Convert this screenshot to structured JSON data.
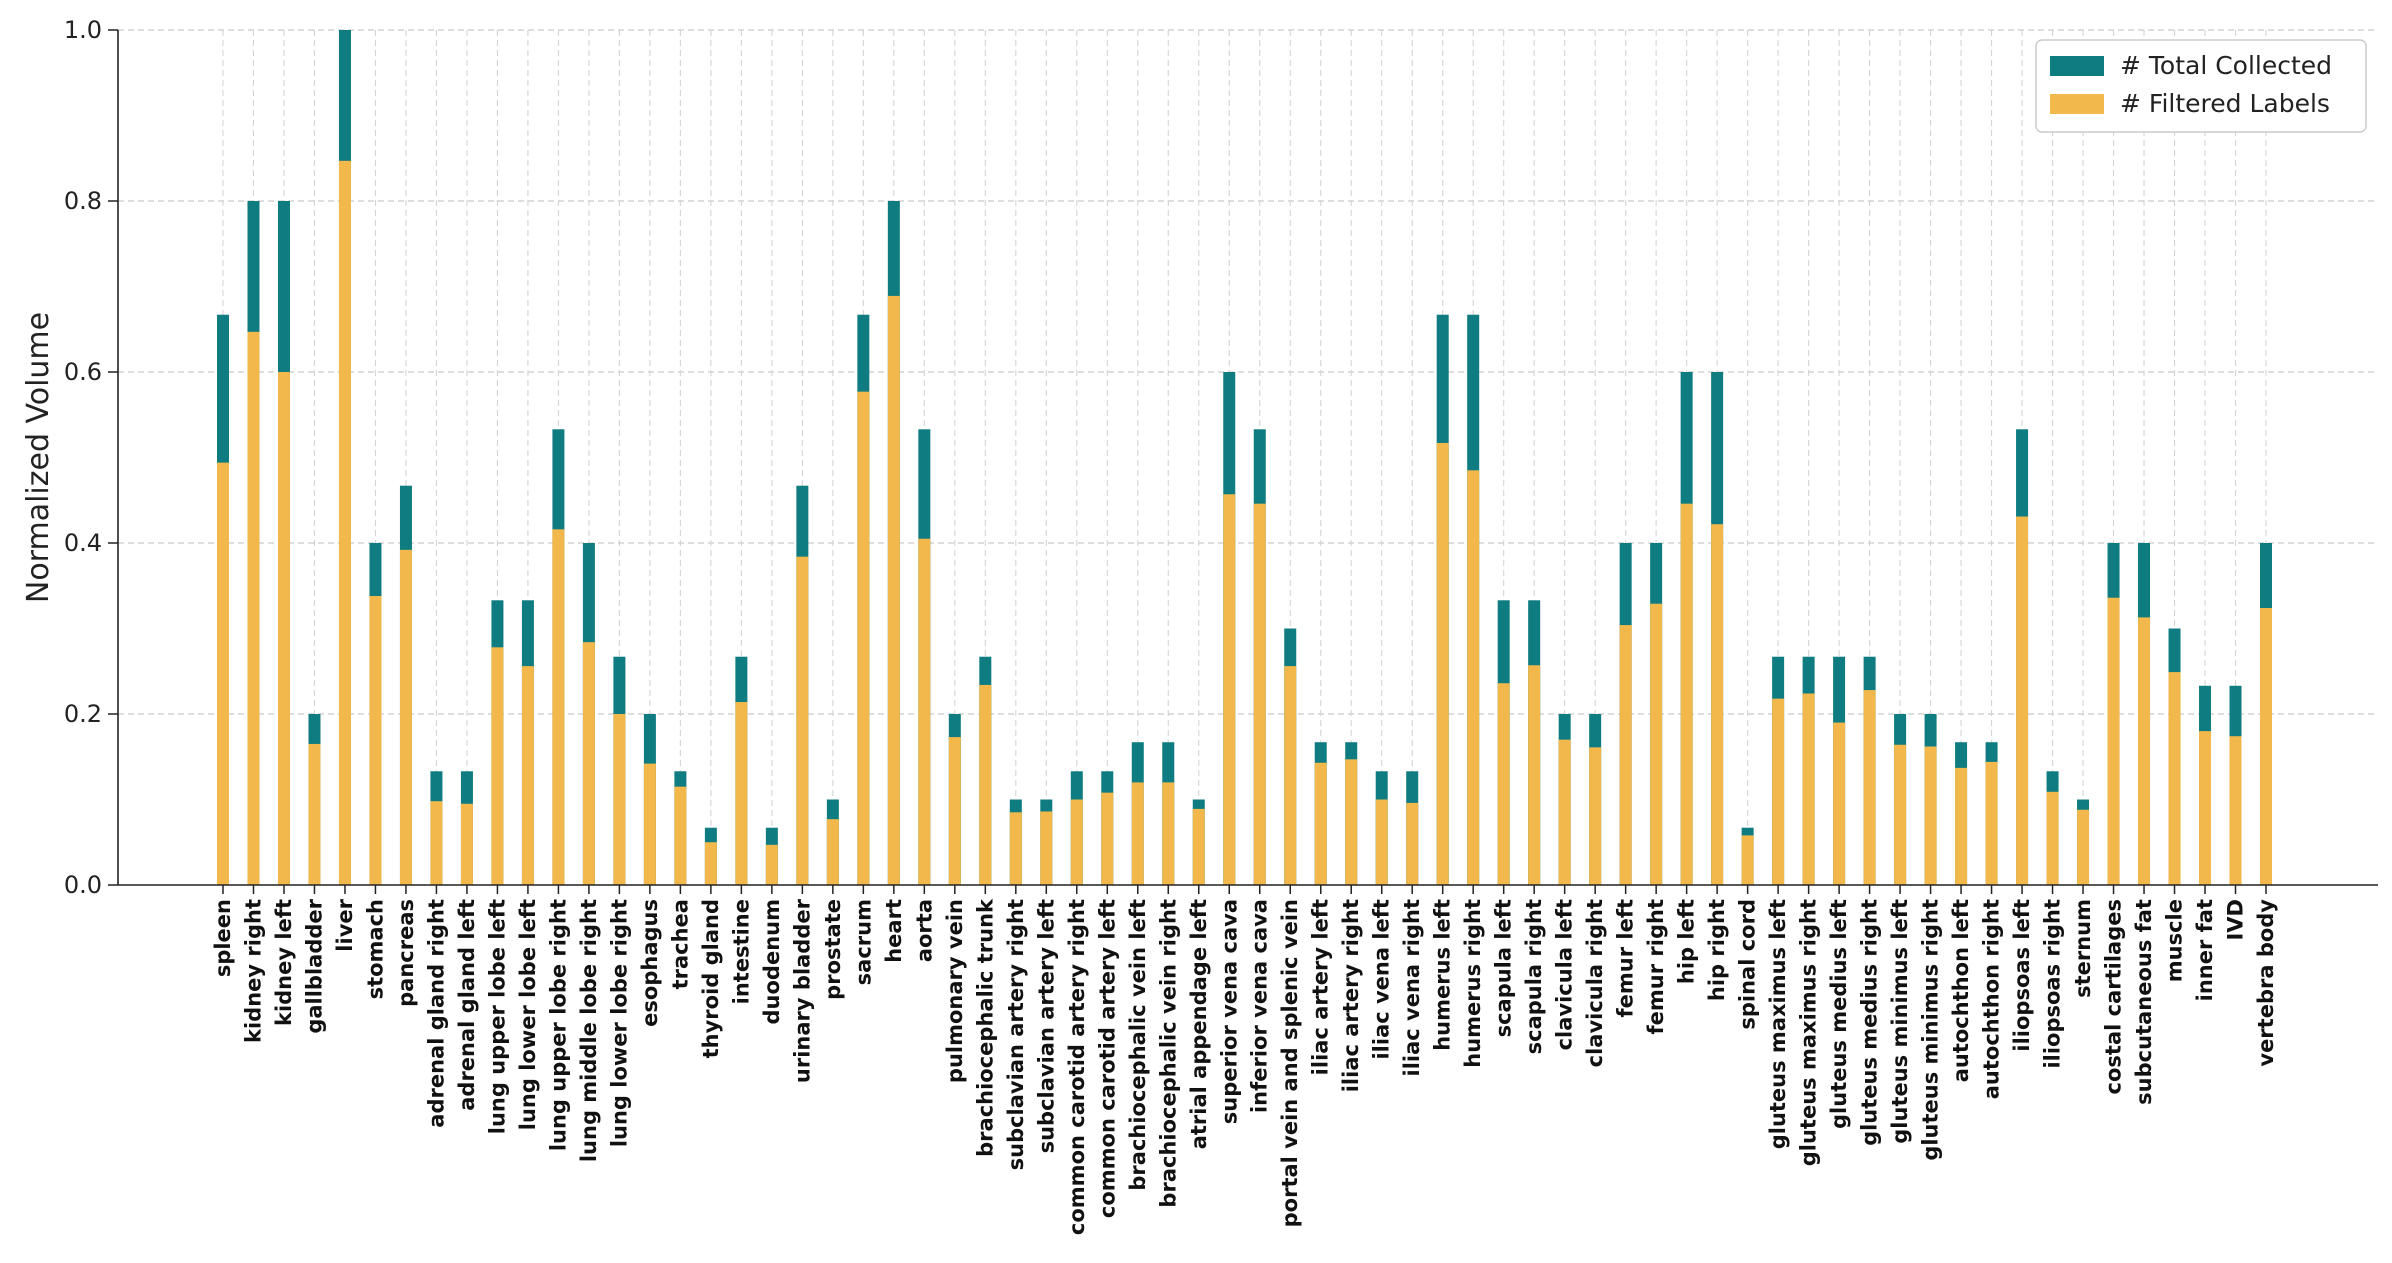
{
  "chart_data": {
    "type": "bar",
    "stacked_overlay": true,
    "title": "",
    "xlabel": "",
    "ylabel": "Normalized Volume",
    "ylim": [
      0,
      1.0
    ],
    "yticks": [
      "0.0",
      "0.2",
      "0.4",
      "0.6",
      "0.8",
      "1.0"
    ],
    "grid": true,
    "legend_position": "top-right",
    "categories": [
      "spleen",
      "kidney right",
      "kidney left",
      "gallbladder",
      "liver",
      "stomach",
      "pancreas",
      "adrenal gland right",
      "adrenal gland left",
      "lung upper lobe left",
      "lung lower lobe left",
      "lung upper lobe right",
      "lung middle lobe right",
      "lung lower lobe right",
      "esophagus",
      "trachea",
      "thyroid gland",
      "intestine",
      "duodenum",
      "urinary bladder",
      "prostate",
      "sacrum",
      "heart",
      "aorta",
      "pulmonary vein",
      "brachiocephalic trunk",
      "subclavian artery right",
      "subclavian artery left",
      "common carotid artery right",
      "common carotid artery left",
      "brachiocephalic vein left",
      "brachiocephalic vein right",
      "atrial appendage left",
      "superior vena cava",
      "inferior vena cava",
      "portal vein and splenic vein",
      "iliac artery left",
      "iliac artery right",
      "iliac vena left",
      "iliac vena right",
      "humerus left",
      "humerus right",
      "scapula left",
      "scapula right",
      "clavicula left",
      "clavicula right",
      "femur left",
      "femur right",
      "hip left",
      "hip right",
      "spinal cord",
      "gluteus maximus left",
      "gluteus maximus right",
      "gluteus medius left",
      "gluteus medius right",
      "gluteus minimus left",
      "gluteus minimus right",
      "autochthon left",
      "autochthon right",
      "iliopsoas left",
      "iliopsoas right",
      "sternum",
      "costal cartilages",
      "subcutaneous fat",
      "muscle",
      "inner fat",
      "IVD",
      "vertebra body"
    ],
    "series": [
      {
        "name": "# Total Collected",
        "color": "#0e7c80",
        "values": [
          0.667,
          0.8,
          0.8,
          0.2,
          1.0,
          0.4,
          0.467,
          0.133,
          0.133,
          0.333,
          0.333,
          0.533,
          0.4,
          0.267,
          0.2,
          0.133,
          0.067,
          0.267,
          0.067,
          0.467,
          0.1,
          0.667,
          0.8,
          0.533,
          0.2,
          0.267,
          0.1,
          0.1,
          0.133,
          0.133,
          0.167,
          0.167,
          0.1,
          0.6,
          0.533,
          0.3,
          0.167,
          0.167,
          0.133,
          0.133,
          0.667,
          0.667,
          0.333,
          0.333,
          0.2,
          0.2,
          0.4,
          0.4,
          0.6,
          0.6,
          0.067,
          0.267,
          0.267,
          0.267,
          0.267,
          0.2,
          0.2,
          0.167,
          0.167,
          0.533,
          0.133,
          0.1,
          0.4,
          0.4,
          0.3,
          0.233,
          0.233,
          0.4
        ]
      },
      {
        "name": "# Filtered Labels",
        "color": "#f2b84b",
        "values": [
          0.494,
          0.647,
          0.6,
          0.165,
          0.847,
          0.338,
          0.392,
          0.098,
          0.095,
          0.278,
          0.256,
          0.416,
          0.284,
          0.2,
          0.142,
          0.115,
          0.05,
          0.214,
          0.047,
          0.384,
          0.077,
          0.577,
          0.689,
          0.405,
          0.173,
          0.234,
          0.085,
          0.086,
          0.1,
          0.108,
          0.12,
          0.12,
          0.089,
          0.457,
          0.446,
          0.256,
          0.143,
          0.147,
          0.1,
          0.096,
          0.517,
          0.485,
          0.236,
          0.257,
          0.17,
          0.161,
          0.304,
          0.329,
          0.446,
          0.422,
          0.058,
          0.218,
          0.224,
          0.19,
          0.228,
          0.164,
          0.162,
          0.137,
          0.144,
          0.431,
          0.109,
          0.088,
          0.336,
          0.313,
          0.249,
          0.18,
          0.174,
          0.324
        ]
      }
    ]
  }
}
